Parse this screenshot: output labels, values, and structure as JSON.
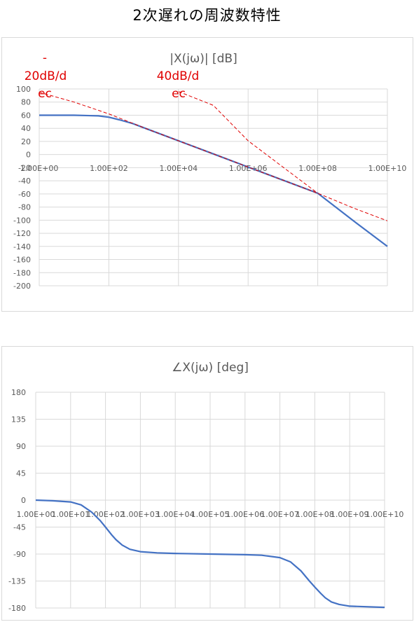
{
  "page": {
    "title": "2次遅れの周波数特性"
  },
  "chart_data": [
    {
      "type": "line",
      "title": "|X(jω)| [dB]",
      "x_scale": "log10",
      "xlim": [
        1,
        10000000000
      ],
      "ylim": [
        -200,
        100
      ],
      "grid": true,
      "x_tick_labels": [
        "1.00E+00",
        "1.00E+02",
        "1.00E+04",
        "1.00E+06",
        "1.00E+08",
        "1.00E+10"
      ],
      "y_tick_labels": [
        "100",
        "80",
        "60",
        "40",
        "20",
        "0",
        "-20",
        "-40",
        "-60",
        "-80",
        "-100",
        "-120",
        "-140",
        "-160",
        "-180",
        "-200"
      ],
      "series": [
        {
          "color": "#4472c4",
          "style": "solid",
          "x": [
            1,
            10,
            50,
            100,
            200,
            500,
            1000,
            10000,
            100000,
            1000000,
            10000000,
            100000000,
            1000000000,
            10000000000
          ],
          "y": [
            60,
            60,
            59,
            57,
            53,
            47,
            41,
            21,
            1,
            -19,
            -39,
            -59,
            -100,
            -140
          ]
        },
        {
          "color": "#e00000",
          "style": "dashed",
          "x": [
            1,
            10,
            100,
            1000,
            10000,
            100000,
            1000000,
            10000000,
            100000000,
            1000000000,
            10000000000
          ],
          "y": [
            95,
            80,
            62,
            41,
            21,
            1,
            -19,
            -39,
            -59,
            -81,
            -101
          ]
        },
        {
          "color": "#e00000",
          "style": "dashed",
          "x": [
            10000,
            100000,
            1000000,
            10000000,
            100000000
          ],
          "y": [
            96,
            75,
            21,
            -19,
            -59
          ]
        }
      ],
      "annotations": [
        {
          "lines": [
            "-",
            "20dB/d",
            "ec"
          ],
          "color": "#e00000"
        },
        {
          "lines": [
            "40dB/d",
            "ec"
          ],
          "color": "#e00000"
        }
      ]
    },
    {
      "type": "line",
      "title": "∠X(jω) [deg]",
      "x_scale": "log10",
      "xlim": [
        1,
        10000000000
      ],
      "ylim": [
        -180,
        180
      ],
      "grid": true,
      "x_tick_labels": [
        "1.00E+00",
        "1.00E+01",
        "1.00E+02",
        "1.00E+03",
        "1.00E+04",
        "1.00E+05",
        "1.00E+06",
        "1.00E+07",
        "1.00E+08",
        "1.00E+09",
        "1.00E+10"
      ],
      "y_tick_labels": [
        "180",
        "135",
        "90",
        "45",
        "0",
        "-45",
        "-90",
        "-135",
        "-180"
      ],
      "series": [
        {
          "color": "#4472c4",
          "style": "solid",
          "x": [
            1,
            3,
            10,
            20,
            40,
            70,
            100,
            150,
            200,
            300,
            500,
            1000,
            3000,
            10000,
            100000,
            1000000,
            3000000,
            10000000,
            20000000,
            40000000,
            70000000,
            100000000,
            150000000,
            200000000,
            300000000,
            500000000,
            1000000000,
            10000000000
          ],
          "y": [
            0,
            -1,
            -3,
            -8,
            -20,
            -34,
            -45,
            -58,
            -66,
            -75,
            -82,
            -86,
            -88,
            -89,
            -90,
            -91,
            -92,
            -96,
            -103,
            -118,
            -135,
            -145,
            -156,
            -163,
            -170,
            -174,
            -177,
            -179
          ]
        }
      ]
    }
  ]
}
